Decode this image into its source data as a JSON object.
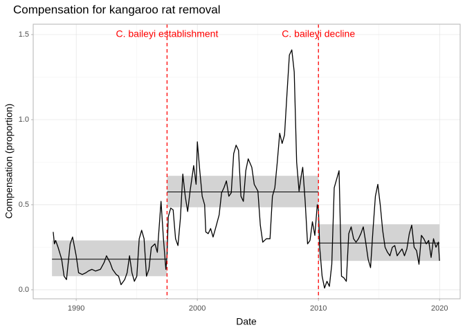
{
  "chart_data": {
    "type": "line",
    "title": "Compensation for kangaroo rat removal",
    "x_label": "Date",
    "y_label": "Compensation (proportion)",
    "xlim": [
      1986.45,
      2021.7
    ],
    "ylim": [
      -0.053,
      1.561
    ],
    "xticks": [
      1990,
      2000,
      2010,
      2020
    ],
    "yticks": [
      {
        "value": 0,
        "label": "0.0"
      },
      0.5,
      {
        "value": 1,
        "label": "1.0"
      },
      1.5
    ],
    "minor_xticks": [
      1995,
      2005,
      2015
    ],
    "minor_yticks": [
      0.25,
      0.75,
      1.25
    ],
    "grid": true,
    "x": [
      1988.1,
      1988.2,
      1988.3,
      1988.5,
      1988.8,
      1989.0,
      1989.2,
      1989.5,
      1989.7,
      1990.0,
      1990.2,
      1990.5,
      1990.8,
      1991.0,
      1991.3,
      1991.6,
      1992.0,
      1992.3,
      1992.5,
      1992.8,
      1993.0,
      1993.3,
      1993.5,
      1993.7,
      1994.0,
      1994.2,
      1994.4,
      1994.6,
      1994.8,
      1995.0,
      1995.2,
      1995.4,
      1995.6,
      1995.8,
      1996.0,
      1996.2,
      1996.5,
      1996.7,
      1997.0,
      1997.2,
      1997.4,
      1997.5,
      1997.6,
      1997.8,
      1998.0,
      1998.2,
      1998.4,
      1998.6,
      1998.8,
      1999.0,
      1999.2,
      1999.4,
      1999.7,
      1999.9,
      2000.0,
      2000.2,
      2000.4,
      2000.6,
      2000.7,
      2000.9,
      2001.1,
      2001.3,
      2001.5,
      2001.8,
      2002.0,
      2002.2,
      2002.4,
      2002.6,
      2002.8,
      2003.0,
      2003.2,
      2003.4,
      2003.6,
      2003.8,
      2004.0,
      2004.2,
      2004.5,
      2004.7,
      2005.0,
      2005.2,
      2005.4,
      2005.7,
      2006.0,
      2006.2,
      2006.4,
      2006.6,
      2006.8,
      2007.0,
      2007.2,
      2007.4,
      2007.6,
      2007.8,
      2008.0,
      2008.2,
      2008.4,
      2008.6,
      2008.7,
      2008.9,
      2009.1,
      2009.3,
      2009.5,
      2009.7,
      2009.9,
      2010.0,
      2010.1,
      2010.3,
      2010.5,
      2010.7,
      2010.9,
      2011.1,
      2011.3,
      2011.5,
      2011.7,
      2011.9,
      2012.1,
      2012.3,
      2012.5,
      2012.7,
      2012.9,
      2013.1,
      2013.3,
      2013.5,
      2013.7,
      2013.9,
      2014.1,
      2014.3,
      2014.5,
      2014.7,
      2014.9,
      2015.1,
      2015.3,
      2015.5,
      2015.7,
      2015.9,
      2016.1,
      2016.3,
      2016.5,
      2016.7,
      2016.9,
      2017.1,
      2017.3,
      2017.5,
      2017.7,
      2017.9,
      2018.1,
      2018.3,
      2018.5,
      2018.7,
      2018.9,
      2019.1,
      2019.3,
      2019.5,
      2019.7,
      2019.9,
      2020.0
    ],
    "series": [
      {
        "color": "#000000",
        "values": [
          0.34,
          0.27,
          0.29,
          0.25,
          0.18,
          0.08,
          0.06,
          0.27,
          0.31,
          0.2,
          0.1,
          0.09,
          0.1,
          0.11,
          0.12,
          0.11,
          0.12,
          0.16,
          0.2,
          0.16,
          0.12,
          0.09,
          0.08,
          0.03,
          0.06,
          0.1,
          0.2,
          0.1,
          0.05,
          0.08,
          0.3,
          0.35,
          0.3,
          0.08,
          0.12,
          0.25,
          0.27,
          0.22,
          0.52,
          0.3,
          0.12,
          0.2,
          0.43,
          0.48,
          0.47,
          0.3,
          0.26,
          0.42,
          0.68,
          0.55,
          0.46,
          0.58,
          0.73,
          0.62,
          0.87,
          0.7,
          0.55,
          0.5,
          0.34,
          0.33,
          0.36,
          0.31,
          0.36,
          0.44,
          0.57,
          0.6,
          0.64,
          0.55,
          0.57,
          0.8,
          0.85,
          0.82,
          0.55,
          0.52,
          0.7,
          0.77,
          0.72,
          0.62,
          0.58,
          0.38,
          0.28,
          0.3,
          0.3,
          0.55,
          0.6,
          0.75,
          0.92,
          0.86,
          0.91,
          1.15,
          1.38,
          1.41,
          1.28,
          0.75,
          0.58,
          0.68,
          0.72,
          0.52,
          0.27,
          0.29,
          0.4,
          0.32,
          0.5,
          0.47,
          0.25,
          0.08,
          0.01,
          0.05,
          0.02,
          0.15,
          0.6,
          0.65,
          0.7,
          0.08,
          0.07,
          0.05,
          0.33,
          0.37,
          0.3,
          0.28,
          0.3,
          0.33,
          0.37,
          0.28,
          0.18,
          0.13,
          0.35,
          0.55,
          0.62,
          0.5,
          0.35,
          0.25,
          0.22,
          0.2,
          0.25,
          0.26,
          0.2,
          0.22,
          0.24,
          0.2,
          0.24,
          0.33,
          0.38,
          0.25,
          0.23,
          0.15,
          0.32,
          0.3,
          0.27,
          0.29,
          0.19,
          0.3,
          0.25,
          0.28,
          0.17
        ]
      }
    ],
    "periods": {
      "color": "#d3d3d3",
      "items": [
        {
          "start": 1988.0,
          "end": 1997.5,
          "mean": 0.18,
          "lower": 0.08,
          "upper": 0.29
        },
        {
          "start": 1997.5,
          "end": 2010.0,
          "mean": 0.575,
          "lower": 0.485,
          "upper": 0.67
        },
        {
          "start": 2010.0,
          "end": 2020.0,
          "mean": 0.275,
          "lower": 0.17,
          "upper": 0.385
        }
      ]
    },
    "annotations": [
      {
        "x": 1997.5,
        "label": "C. baileyi establishment",
        "color": "#ff0000"
      },
      {
        "x": 2010.0,
        "label": "C. baileyi decline",
        "color": "#ff0000"
      }
    ]
  }
}
